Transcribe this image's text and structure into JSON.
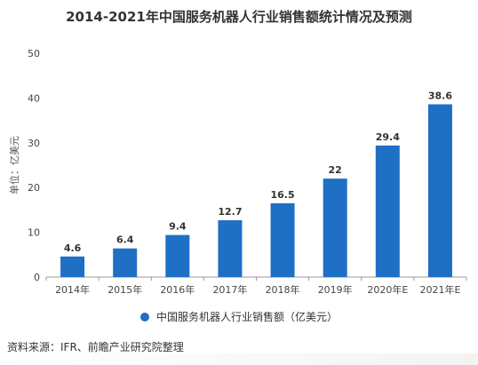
{
  "title": "2014-2021年中国服务机器人行业销售额统计情况及预测",
  "source": "资料来源：IFR、前瞻产业研究院整理",
  "colors": {
    "bar": "#1f6fc5",
    "axis": "#999999",
    "grid": "#d9d9d9"
  },
  "chart_data": {
    "type": "bar",
    "title": "2014-2021年中国服务机器人行业销售额统计情况及预测",
    "xlabel": "",
    "ylabel": "单位：亿美元",
    "categories": [
      "2014年",
      "2015年",
      "2016年",
      "2017年",
      "2018年",
      "2019年",
      "2020年E",
      "2021年E"
    ],
    "series": [
      {
        "name": "中国服务机器人行业销售额（亿美元）",
        "values": [
          4.6,
          6.4,
          9.4,
          12.7,
          16.5,
          22,
          29.4,
          38.6
        ]
      }
    ],
    "value_labels": [
      "4.6",
      "6.4",
      "9.4",
      "12.7",
      "16.5",
      "22",
      "29.4",
      "38.6"
    ],
    "ylim": [
      0,
      50
    ],
    "yticks": [
      "0",
      "10",
      "20",
      "30",
      "40",
      "50"
    ],
    "grid": false,
    "legend_position": "bottom"
  }
}
